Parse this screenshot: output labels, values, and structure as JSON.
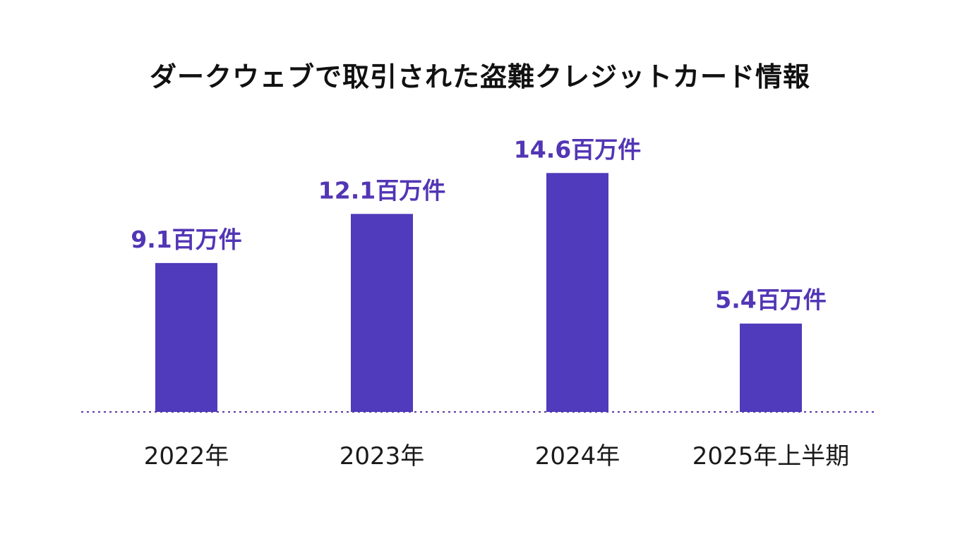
{
  "colors": {
    "bar": "#4f3bbb",
    "value_label": "#5236b5",
    "baseline": "#5a3aa0",
    "text": "#1a1a1a"
  },
  "chart_data": {
    "type": "bar",
    "title": "ダークウェブで取引された盗難クレジットカード情報",
    "xlabel": "",
    "ylabel": "",
    "unit": "百万件",
    "categories": [
      "2022年",
      "2023年",
      "2024年",
      "2025年上半期"
    ],
    "values": [
      9.1,
      12.1,
      14.6,
      5.4
    ],
    "value_labels": [
      "9.1百万件",
      "12.1百万件",
      "14.6百万件",
      "5.4百万件"
    ],
    "ylim": [
      0,
      16
    ],
    "grid": false,
    "legend": "none",
    "baseline_style": "dotted"
  }
}
